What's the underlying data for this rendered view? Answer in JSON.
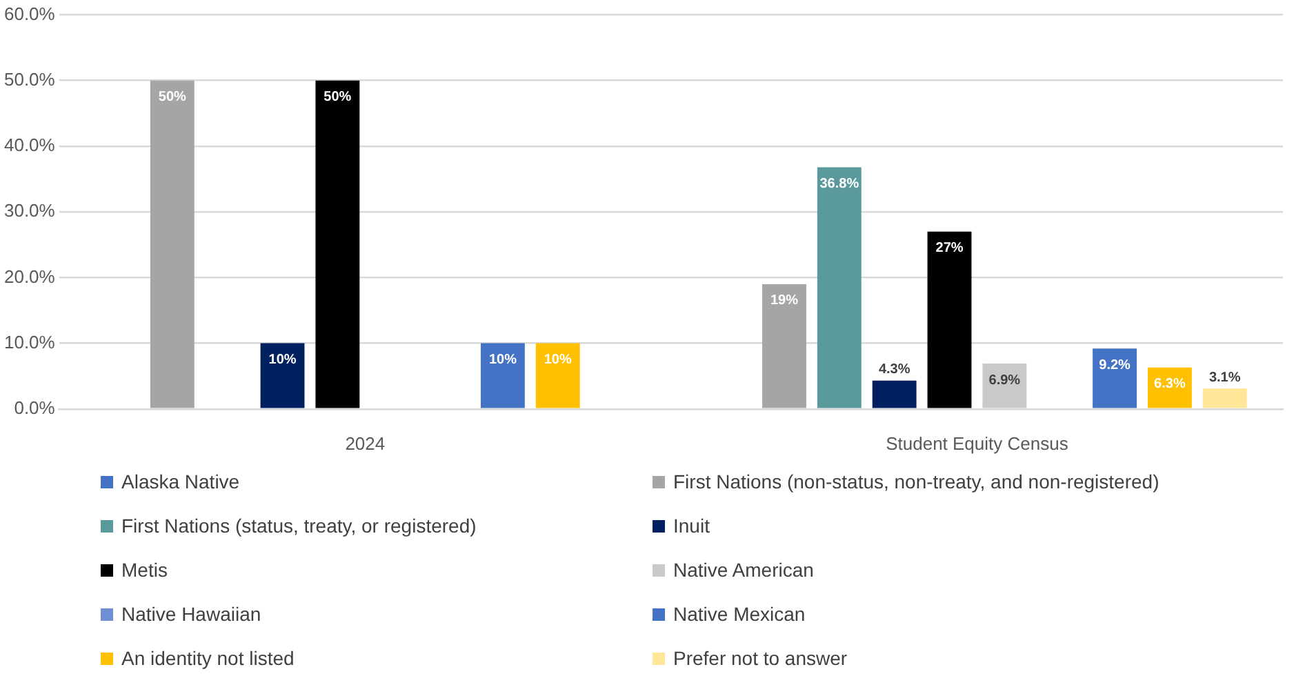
{
  "chart_data": {
    "type": "bar",
    "categories": [
      "2024",
      "Student Equity Census"
    ],
    "series": [
      {
        "name": "Alaska Native",
        "color": "#4472c4",
        "values": [
          null,
          null
        ]
      },
      {
        "name": "First Nations (non-status, non-treaty, and non-registered)",
        "color": "#a5a5a5",
        "values": [
          50,
          19
        ],
        "value_labels": [
          "50%",
          "19%"
        ]
      },
      {
        "name": "First Nations (status, treaty, or registered)",
        "color": "#5b9a9c",
        "values": [
          null,
          36.8
        ],
        "value_labels": [
          null,
          "36.8%"
        ]
      },
      {
        "name": "Inuit",
        "color": "#002060",
        "values": [
          10,
          4.3
        ],
        "value_labels": [
          "10%",
          "4.3%"
        ]
      },
      {
        "name": "Metis",
        "color": "#000000",
        "values": [
          50,
          27
        ],
        "value_labels": [
          "50%",
          "27%"
        ]
      },
      {
        "name": "Native American",
        "color": "#c9c9c9",
        "values": [
          null,
          6.9
        ],
        "value_labels": [
          null,
          "6.9%"
        ]
      },
      {
        "name": "Native Hawaiian",
        "color": "#6f8fd4",
        "values": [
          null,
          null
        ]
      },
      {
        "name": "Native Mexican",
        "color": "#4472c4",
        "values": [
          10,
          9.2
        ],
        "value_labels": [
          "10%",
          "9.2%"
        ]
      },
      {
        "name": "An identity not listed",
        "color": "#ffc000",
        "values": [
          10,
          6.3
        ],
        "value_labels": [
          "10%",
          "6.3%"
        ]
      },
      {
        "name": "Prefer not to answer",
        "color": "#ffe699",
        "values": [
          null,
          3.1
        ],
        "value_labels": [
          null,
          "3.1%"
        ]
      }
    ],
    "ylim": [
      0,
      60
    ],
    "yticks": [
      {
        "value": 0,
        "label": "0.0%"
      },
      {
        "value": 10,
        "label": "10.0%"
      },
      {
        "value": 20,
        "label": "20.0%"
      },
      {
        "value": 30,
        "label": "30.0%"
      },
      {
        "value": 40,
        "label": "40.0%"
      },
      {
        "value": 50,
        "label": "50.0%"
      },
      {
        "value": 60,
        "label": "60.0%"
      }
    ],
    "grid": "y",
    "legend": "bottom"
  }
}
